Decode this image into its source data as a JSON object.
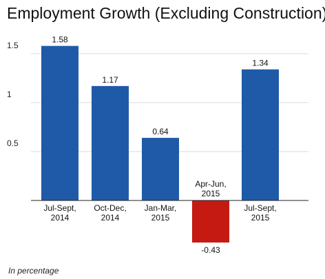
{
  "chart_data": {
    "type": "bar",
    "title": "Employment Growth (Excluding Construction)",
    "note": "In percentage",
    "xlabel": "",
    "ylabel": "",
    "categories": [
      [
        "Jul-Sept,",
        "2014"
      ],
      [
        "Oct-Dec,",
        "2014"
      ],
      [
        "Jan-Mar,",
        "2015"
      ],
      [
        "Apr-Jun,",
        "2015"
      ],
      [
        "Jul-Sept,",
        "2015"
      ]
    ],
    "values": [
      1.58,
      1.17,
      0.64,
      -0.43,
      1.34
    ],
    "value_labels": [
      "1.58",
      "1.17",
      "0.64",
      "-0.43",
      "1.34"
    ],
    "yticks": [
      {
        "value": 0.5,
        "label": "0.5"
      },
      {
        "value": 1,
        "label": "1"
      },
      {
        "value": 1.5,
        "label": "1.5"
      }
    ],
    "ylim": [
      -0.62,
      1.9
    ],
    "grid": true,
    "legend": "none",
    "colors": {
      "positive": "#1f5aa8",
      "negative": "#c51a12",
      "grid": "#d8d8d8",
      "axis": "#222222"
    }
  }
}
